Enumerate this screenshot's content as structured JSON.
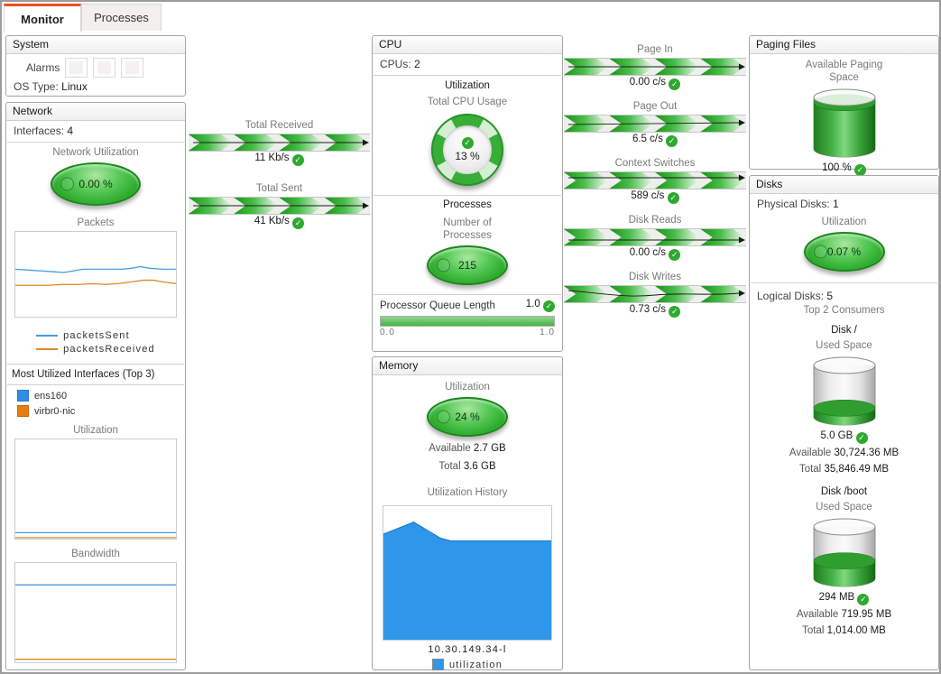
{
  "tabs": [
    {
      "label": "Monitor"
    },
    {
      "label": "Processes"
    }
  ],
  "system": {
    "title": "System",
    "alarms_label": "Alarms",
    "os_label": "OS Type:",
    "os_value": "Linux"
  },
  "network": {
    "title": "Network",
    "interfaces_label": "Interfaces:",
    "interfaces_value": "4",
    "util_label": "Network Utilization",
    "util_value": "0.00 %",
    "packets_label": "Packets",
    "legend_sent": "packetsSent",
    "legend_received": "packetsReceived",
    "top_label": "Most Utilized Interfaces (Top 3)",
    "iface1": "ens160",
    "iface2": "virbr0-nic",
    "iface_util_label": "Utilization",
    "bandwidth_label": "Bandwidth"
  },
  "flow_left": [
    {
      "label": "Total Received",
      "value": "11 Kb/s"
    },
    {
      "label": "Total Sent",
      "value": "41 Kb/s"
    }
  ],
  "flow_right": [
    {
      "label": "Page In",
      "value": "0.00 c/s"
    },
    {
      "label": "Page Out",
      "value": "6.5 c/s"
    },
    {
      "label": "Context Switches",
      "value": "589 c/s"
    },
    {
      "label": "Disk Reads",
      "value": "0.00 c/s"
    },
    {
      "label": "Disk Writes",
      "value": "0.73 c/s"
    }
  ],
  "cpu": {
    "title": "CPU",
    "cpus_label": "CPUs:",
    "cpus_value": "2",
    "utilization_header": "Utilization",
    "usage_label": "Total CPU Usage",
    "usage_value": "13 %",
    "processes_header": "Processes",
    "nproc_label": "Number of Processes",
    "nproc_value": "215",
    "queue_label": "Processor Queue Length",
    "queue_value": "1.0",
    "queue_min": "0.0",
    "queue_max": "1.0",
    "queue_fill_pct": 100
  },
  "memory": {
    "title": "Memory",
    "util_label": "Utilization",
    "util_value": "24 %",
    "available_label": "Available",
    "available_value": "2.7 GB",
    "total_label": "Total",
    "total_value": "3.6 GB",
    "history_label": "Utilization History",
    "x_axis_label": "10.30.149.34-l",
    "legend": "utilization"
  },
  "paging": {
    "title": "Paging Files",
    "label": "Available Paging Space",
    "value": "100 %",
    "fill_pct": 90
  },
  "disks": {
    "title": "Disks",
    "physical_label": "Physical Disks:",
    "physical_value": "1",
    "util_label": "Utilization",
    "util_value": "0.07 %",
    "logical_label": "Logical Disks:",
    "logical_value": "5",
    "top_label": "Top 2 Consumers",
    "disk_root": {
      "name": "Disk /",
      "space_label": "Used Space",
      "used_value": "5.0 GB",
      "available_label": "Available",
      "available_value": "30,724.36 MB",
      "total_label": "Total",
      "total_value": "35,846.49 MB",
      "fill_pct": 17
    },
    "disk_boot": {
      "name": "Disk /boot",
      "space_label": "Used Space",
      "used_value": "294 MB",
      "available_label": "Available",
      "available_value": "719.95 MB",
      "total_label": "Total",
      "total_value": "1,014.00 MB",
      "fill_pct": 34
    }
  },
  "colors": {
    "accent_orange": "#e8511d",
    "gauge_green": "#2eb22e",
    "ok_green": "#2fa82f",
    "chart_blue": "#4a9ade",
    "chart_orange": "#dd8826",
    "area_blue": "#2f97ea"
  },
  "chart_data": [
    {
      "id": "packets",
      "type": "line",
      "title": "Packets",
      "legend_position": "bottom",
      "legend": [
        "packetsSent",
        "packetsReceived"
      ],
      "series": [
        {
          "name": "packetsSent",
          "color": "#4a9ade",
          "points": [
            [
              0,
              44
            ],
            [
              8,
              45
            ],
            [
              16,
              46
            ],
            [
              24,
              47
            ],
            [
              30,
              48
            ],
            [
              36,
              46
            ],
            [
              42,
              44
            ],
            [
              50,
              44
            ],
            [
              58,
              44
            ],
            [
              66,
              44
            ],
            [
              72,
              43
            ],
            [
              78,
              41
            ],
            [
              84,
              43
            ],
            [
              92,
              44
            ],
            [
              100,
              44
            ]
          ]
        },
        {
          "name": "packetsReceived",
          "color": "#dd8826",
          "points": [
            [
              0,
              63
            ],
            [
              10,
              63
            ],
            [
              20,
              63
            ],
            [
              30,
              62
            ],
            [
              40,
              62
            ],
            [
              48,
              61
            ],
            [
              56,
              62
            ],
            [
              64,
              61
            ],
            [
              72,
              59
            ],
            [
              80,
              57
            ],
            [
              86,
              57
            ],
            [
              92,
              59
            ],
            [
              100,
              61
            ]
          ]
        }
      ]
    },
    {
      "id": "iface_util",
      "type": "line",
      "title": "Utilization",
      "series": [
        {
          "name": "ens160",
          "color": "#4a9ade",
          "points": [
            [
              0,
              94
            ],
            [
              100,
              94
            ]
          ]
        },
        {
          "name": "virbr0-nic",
          "color": "#dd8826",
          "points": [
            [
              0,
              99
            ],
            [
              100,
              99
            ]
          ]
        }
      ]
    },
    {
      "id": "bandwidth",
      "type": "line",
      "title": "Bandwidth",
      "series": [
        {
          "name": "ens160",
          "color": "#4a9ade",
          "points": [
            [
              0,
              22
            ],
            [
              100,
              22
            ]
          ]
        },
        {
          "name": "virbr0-nic",
          "color": "#dd8826",
          "points": [
            [
              0,
              97
            ],
            [
              100,
              97
            ]
          ]
        }
      ]
    },
    {
      "id": "memory_history",
      "type": "area",
      "title": "Utilization History",
      "x_label": "10.30.149.34-l",
      "legend": [
        "utilization"
      ],
      "series": [
        {
          "name": "utilization",
          "color": "#2f97ea",
          "stroke": "#1f7fd4",
          "area": true,
          "points": [
            [
              0,
              21
            ],
            [
              10,
              16
            ],
            [
              18,
              12
            ],
            [
              26,
              18
            ],
            [
              34,
              24
            ],
            [
              40,
              26
            ],
            [
              100,
              26
            ]
          ]
        }
      ]
    }
  ]
}
